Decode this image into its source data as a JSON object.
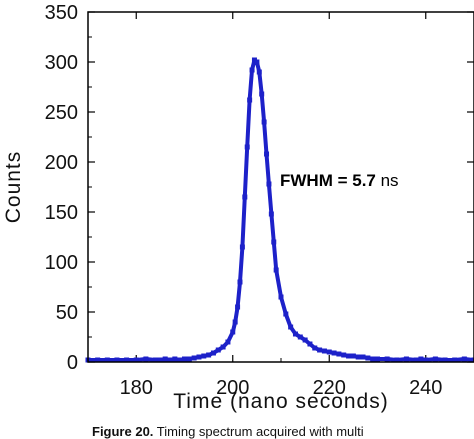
{
  "chart_data": {
    "type": "line",
    "xlabel": "Time (nano seconds)",
    "ylabel": "Counts",
    "xlim": [
      170,
      250
    ],
    "ylim": [
      0,
      350
    ],
    "xticks": [
      180,
      200,
      220,
      240
    ],
    "yticks": [
      0,
      50,
      100,
      150,
      200,
      250,
      300,
      350
    ],
    "grid": false,
    "line_color": "#1d21c9",
    "annotation": {
      "bold_text": "FWHM = 5.7",
      "unit_text": " ns"
    },
    "series": [
      {
        "x": [
          170,
          172,
          174,
          176,
          178,
          180,
          182,
          184,
          185,
          186,
          187,
          188,
          189,
          190,
          191,
          192,
          193,
          194,
          195,
          196,
          197,
          198,
          199,
          200,
          200.5,
          201,
          201.5,
          202,
          202.5,
          203,
          203.5,
          204,
          204.5,
          205,
          205.5,
          206,
          206.5,
          207,
          207.5,
          208,
          208.5,
          209,
          210,
          211,
          212,
          213,
          214,
          215,
          216,
          217,
          218,
          219,
          220,
          221,
          222,
          223,
          224,
          225,
          226,
          227,
          228,
          229,
          230,
          232,
          234,
          236,
          238,
          239,
          240,
          242,
          244,
          246,
          248,
          250
        ],
        "y": [
          2,
          2,
          2,
          2,
          2,
          2,
          3,
          2,
          2,
          3,
          2,
          3,
          2,
          3,
          3,
          4,
          5,
          6,
          7,
          9,
          12,
          15,
          20,
          30,
          40,
          55,
          80,
          115,
          165,
          215,
          262,
          292,
          302,
          300,
          290,
          268,
          240,
          208,
          178,
          148,
          120,
          92,
          65,
          48,
          35,
          28,
          25,
          22,
          18,
          14,
          12,
          11,
          10,
          9,
          8,
          7,
          6,
          6,
          5,
          5,
          4,
          3,
          3,
          3,
          2,
          3,
          2,
          3,
          2,
          3,
          2,
          2,
          3,
          2
        ]
      }
    ]
  },
  "caption": {
    "label": "Figure 20.",
    "text": " Timing spectrum acquired with multi"
  }
}
